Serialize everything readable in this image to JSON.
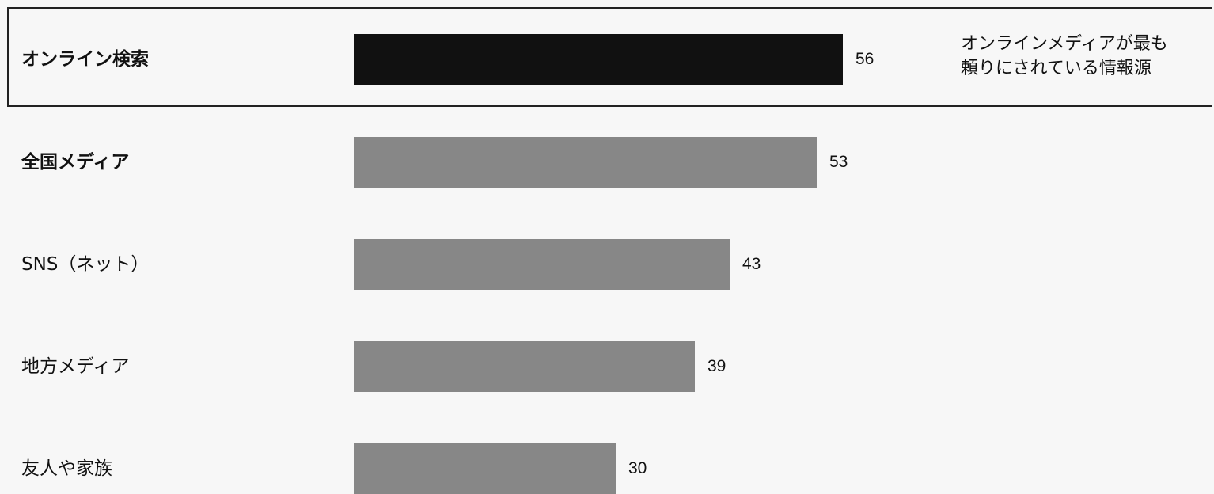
{
  "chart_data": {
    "type": "bar",
    "orientation": "horizontal",
    "categories": [
      "オンライン検索",
      "全国メディア",
      "SNS（ネット）",
      "地方メディア",
      "友人や家族"
    ],
    "values": [
      56,
      53,
      43,
      39,
      30
    ],
    "bold_categories": [
      true,
      true,
      false,
      false,
      false
    ],
    "highlight_index": 0,
    "colors": {
      "highlight": "#111111",
      "default": "#878787",
      "background": "#f7f7f7"
    },
    "annotation": [
      "オンラインメディアが最も",
      "頼りにされている情報源"
    ]
  }
}
